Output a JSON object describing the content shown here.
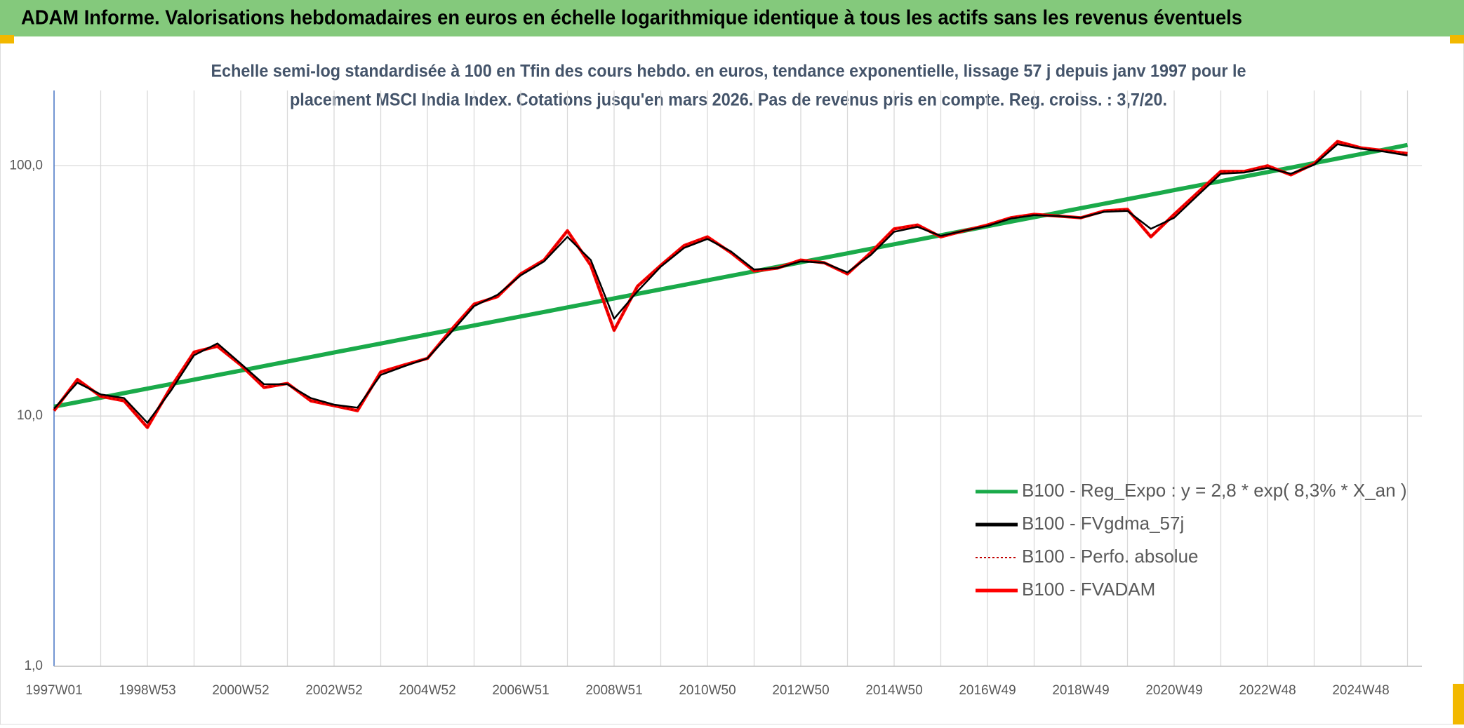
{
  "chart_data": {
    "type": "line",
    "title": "ADAM Informe. Valorisations hebdomadaires en euros en échelle logarithmique identique à tous les actifs sans les revenus éventuels",
    "subtitle": [
      "Echelle semi-log standardisée à 100 en Tfin des cours hebdo. en euros, tendance exponentielle, lissage 57 j depuis janv 1997 pour le",
      "placement MSCI India Index. Cotations jusqu'en mars 2026. Pas de revenus pris en compte. Reg. croiss. : 3,7/20."
    ],
    "categories": [
      "1997W01",
      null,
      null,
      null,
      "1998W53",
      null,
      null,
      null,
      "2000W52",
      null,
      null,
      null,
      "2002W52",
      null,
      null,
      null,
      "2004W52",
      null,
      null,
      null,
      "2006W51",
      null,
      null,
      null,
      "2008W51",
      null,
      null,
      null,
      "2010W50",
      null,
      null,
      null,
      "2012W50",
      null,
      null,
      null,
      "2014W50",
      null,
      null,
      null,
      "2016W49",
      null,
      null,
      null,
      "2018W49",
      null,
      null,
      null,
      "2020W49",
      null,
      null,
      null,
      "2022W48",
      null,
      null,
      null,
      "2024W48",
      null,
      null
    ],
    "log_scale": true,
    "ylim": [
      1,
      200
    ],
    "yticks": [
      {
        "value": 1,
        "label": "1,0"
      },
      {
        "value": 10,
        "label": "10,0"
      },
      {
        "value": 100,
        "label": "100,0"
      }
    ],
    "grid": true,
    "legend": "lower right",
    "series": [
      {
        "name": "B100 - Reg_Expo : y = 2,8 * exp( 8,3% *  X_an )",
        "color": "#1aaa4a",
        "style": "solid",
        "values": [
          10.9,
          11.36,
          11.84,
          12.35,
          12.87,
          13.41,
          13.98,
          14.58,
          15.19,
          15.84,
          16.51,
          17.21,
          17.94,
          18.7,
          19.49,
          20.32,
          21.18,
          22.08,
          23.01,
          23.99,
          25.0,
          26.06,
          27.17,
          28.32,
          29.52,
          30.77,
          32.07,
          33.43,
          34.85,
          36.33,
          37.87,
          39.47,
          41.14,
          42.89,
          44.7,
          46.6,
          48.57,
          50.63,
          52.78,
          55.02,
          57.35,
          59.78,
          62.31,
          64.95,
          67.71,
          70.58,
          73.57,
          76.68,
          79.93,
          83.32,
          86.85,
          90.53,
          94.37,
          98.37,
          102.5,
          106.9,
          111.4,
          116.1,
          121.1
        ]
      },
      {
        "name": "B100 - FVgdma_57j",
        "color": "#000000",
        "style": "solid",
        "values": [
          10.7,
          13.6,
          12.2,
          11.8,
          9.4,
          12.6,
          17.5,
          19.5,
          16.2,
          13.4,
          13.4,
          11.8,
          11.1,
          10.8,
          14.6,
          15.8,
          17.0,
          21.5,
          27.5,
          30.5,
          36.5,
          41.5,
          52.0,
          42.0,
          24.5,
          31.5,
          39.5,
          47.0,
          51.0,
          45.5,
          38.5,
          39.0,
          41.5,
          41.0,
          37.5,
          44.0,
          54.5,
          57.0,
          52.5,
          55.0,
          57.5,
          61.5,
          63.5,
          63.0,
          62.0,
          65.5,
          66.0,
          56.0,
          62.0,
          76.0,
          93.0,
          94.0,
          98.0,
          93.0,
          101.0,
          122.0,
          117.0,
          114.0,
          110.0
        ]
      },
      {
        "name": "B100 - Perfo. absolue",
        "color": "#c00000",
        "style": "dotted",
        "values": [
          10.5,
          14.0,
          12.0,
          11.5,
          9.0,
          13.0,
          18.0,
          19.0,
          16.0,
          13.0,
          13.5,
          11.5,
          11.0,
          10.5,
          15.0,
          16.0,
          17.0,
          22.0,
          28.0,
          30.0,
          37.0,
          42.0,
          55.0,
          40.0,
          22.0,
          33.0,
          40.0,
          48.0,
          52.0,
          45.0,
          38.0,
          39.0,
          42.0,
          41.0,
          37.0,
          45.0,
          56.0,
          58.0,
          52.0,
          55.0,
          58.0,
          62.0,
          64.0,
          63.0,
          62.0,
          66.0,
          67.0,
          52.0,
          64.0,
          78.0,
          95.0,
          95.0,
          100.0,
          92.0,
          102.0,
          125.0,
          118.0,
          115.0,
          112.0
        ]
      },
      {
        "name": "B100 - FVADAM",
        "color": "#ff0000",
        "style": "solid",
        "values": [
          10.5,
          14.0,
          12.0,
          11.5,
          9.0,
          13.0,
          18.0,
          19.0,
          16.0,
          13.0,
          13.5,
          11.5,
          11.0,
          10.5,
          15.0,
          16.0,
          17.0,
          22.0,
          28.0,
          30.0,
          37.0,
          42.0,
          55.0,
          40.0,
          22.0,
          33.0,
          40.0,
          48.0,
          52.0,
          45.0,
          38.0,
          39.0,
          42.0,
          41.0,
          37.0,
          45.0,
          56.0,
          58.0,
          52.0,
          55.0,
          58.0,
          62.0,
          64.0,
          63.0,
          62.0,
          66.0,
          67.0,
          52.0,
          64.0,
          78.0,
          95.0,
          95.0,
          100.0,
          92.0,
          102.0,
          125.0,
          118.0,
          115.0,
          112.0
        ]
      }
    ]
  }
}
